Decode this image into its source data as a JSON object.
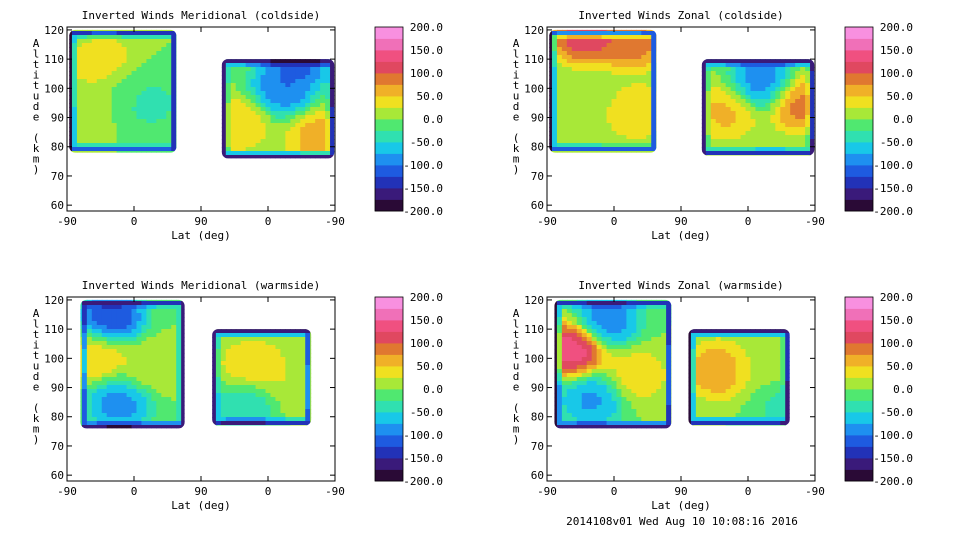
{
  "footer": "2014108v01 Wed Aug 10 10:08:16 2016",
  "colormap": [
    "#2a0a36",
    "#3a1a7a",
    "#2232b8",
    "#1e5be0",
    "#1e90f0",
    "#18c8e8",
    "#30e0b0",
    "#50e870",
    "#a8e838",
    "#f0e020",
    "#f0b028",
    "#e07830",
    "#e04860",
    "#f05080",
    "#f070b8",
    "#f890e0"
  ],
  "chart_data": [
    {
      "type": "heatmap",
      "title": "Inverted Winds Meridional (coldside)",
      "xlabel": "Lat (deg)",
      "ylabel": "Altitude (km)",
      "x_ticks": [
        "-90",
        "0",
        "90",
        "0",
        "-90"
      ],
      "y_ticks": [
        "60",
        "70",
        "80",
        "90",
        "100",
        "110",
        "120"
      ],
      "ylim": [
        58,
        121
      ],
      "colorbar_ticks": [
        "200.0",
        "150.0",
        "100.0",
        "50.0",
        "0.0",
        "-50.0",
        "-100.0",
        "-150.0",
        "-200.0"
      ],
      "clim": [
        -200,
        200
      ],
      "blobs": [
        {
          "x": -40,
          "alt": 108,
          "v": 60
        },
        {
          "x": -10,
          "alt": 100,
          "v": -20
        },
        {
          "x": 20,
          "alt": 95,
          "v": -40
        },
        {
          "x": -60,
          "alt": 95,
          "v": 20
        },
        {
          "x": 140,
          "alt": 88,
          "v": 60
        },
        {
          "x": 200,
          "alt": 100,
          "v": -120
        },
        {
          "x": 250,
          "alt": 83,
          "v": 80
        },
        {
          "x": 220,
          "alt": 110,
          "v": -140
        }
      ],
      "coverage": [
        [
          -87,
          57,
          78,
          120
        ],
        [
          118,
          269,
          76,
          110
        ]
      ]
    },
    {
      "type": "heatmap",
      "title": "Inverted Winds Zonal (coldside)",
      "xlabel": "Lat (deg)",
      "ylabel": "Altitude (km)",
      "x_ticks": [
        "-90",
        "0",
        "90",
        "0",
        "-90"
      ],
      "y_ticks": [
        "60",
        "70",
        "80",
        "90",
        "100",
        "110",
        "120"
      ],
      "ylim": [
        58,
        121
      ],
      "colorbar_ticks": [
        "200.0",
        "150.0",
        "100.0",
        "50.0",
        "0.0",
        "-50.0",
        "-100.0",
        "-150.0",
        "-200.0"
      ],
      "clim": [
        -200,
        200
      ],
      "blobs": [
        {
          "x": -40,
          "alt": 118,
          "v": 150
        },
        {
          "x": 20,
          "alt": 116,
          "v": 120
        },
        {
          "x": -20,
          "alt": 98,
          "v": 20
        },
        {
          "x": 30,
          "alt": 92,
          "v": 60
        },
        {
          "x": 150,
          "alt": 92,
          "v": 70
        },
        {
          "x": 200,
          "alt": 102,
          "v": -120
        },
        {
          "x": 250,
          "alt": 95,
          "v": 110
        }
      ],
      "coverage": [
        [
          -87,
          57,
          78,
          120
        ],
        [
          118,
          269,
          77,
          110
        ]
      ]
    },
    {
      "type": "heatmap",
      "title": "Inverted Winds Meridional (warmside)",
      "xlabel": "Lat (deg)",
      "ylabel": "Altitude (km)",
      "x_ticks": [
        "-90",
        "0",
        "90",
        "0",
        "-90"
      ],
      "y_ticks": [
        "60",
        "70",
        "80",
        "90",
        "100",
        "110",
        "120"
      ],
      "ylim": [
        58,
        121
      ],
      "colorbar_ticks": [
        "200.0",
        "150.0",
        "100.0",
        "50.0",
        "0.0",
        "-50.0",
        "-100.0",
        "-150.0",
        "-200.0"
      ],
      "clim": [
        -200,
        200
      ],
      "blobs": [
        {
          "x": -30,
          "alt": 114,
          "v": -150
        },
        {
          "x": -50,
          "alt": 100,
          "v": 60
        },
        {
          "x": 20,
          "alt": 97,
          "v": 30
        },
        {
          "x": -20,
          "alt": 85,
          "v": -110
        },
        {
          "x": 160,
          "alt": 97,
          "v": 60
        },
        {
          "x": 220,
          "alt": 90,
          "v": 30
        },
        {
          "x": 150,
          "alt": 84,
          "v": -60
        }
      ],
      "coverage": [
        [
          -72,
          68,
          76,
          120
        ],
        [
          105,
          238,
          77,
          110
        ]
      ]
    },
    {
      "type": "heatmap",
      "title": "Inverted Winds Zonal (warmside)",
      "xlabel": "Lat (deg)",
      "ylabel": "Altitude (km)",
      "x_ticks": [
        "-90",
        "0",
        "90",
        "0",
        "-90"
      ],
      "y_ticks": [
        "60",
        "70",
        "80",
        "90",
        "100",
        "110",
        "120"
      ],
      "ylim": [
        58,
        121
      ],
      "colorbar_ticks": [
        "200.0",
        "150.0",
        "100.0",
        "50.0",
        "0.0",
        "-50.0",
        "-100.0",
        "-150.0",
        "-200.0"
      ],
      "clim": [
        -200,
        200
      ],
      "blobs": [
        {
          "x": -55,
          "alt": 103,
          "v": 180
        },
        {
          "x": -10,
          "alt": 113,
          "v": -120
        },
        {
          "x": 30,
          "alt": 94,
          "v": 50
        },
        {
          "x": -30,
          "alt": 86,
          "v": -100
        },
        {
          "x": 140,
          "alt": 96,
          "v": 90
        },
        {
          "x": 200,
          "alt": 98,
          "v": 20
        },
        {
          "x": 230,
          "alt": 84,
          "v": -40
        }
      ],
      "coverage": [
        [
          -80,
          77,
          76,
          120
        ],
        [
          100,
          236,
          77,
          110
        ]
      ]
    }
  ]
}
